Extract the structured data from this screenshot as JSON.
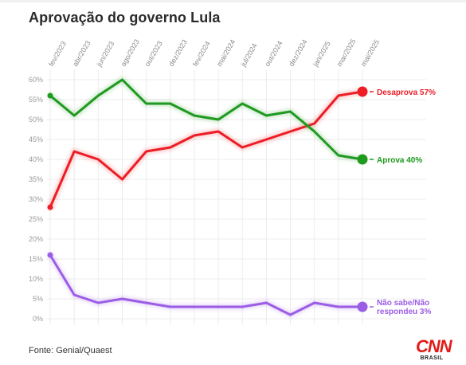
{
  "title": "Aprovação do governo Lula",
  "source": "Fonte: Genial/Quaest",
  "logo": {
    "brand": "CNN",
    "sub": "BRASIL"
  },
  "colors": {
    "approve": "#1f9a1f",
    "disapprove": "#ee1c25",
    "dontknow": "#9b5de5",
    "grid": "#ececec",
    "axis": "#dddddd"
  },
  "chart_data": {
    "type": "line",
    "x_ticks": [
      "fev/2023",
      "abr/2023",
      "jun/2023",
      "ago/2023",
      "out/2023",
      "dez/2023",
      "fev/2024",
      "mai/2024",
      "jul/2024",
      "out/2024",
      "dez/2024",
      "jan/2025",
      "mar/2025",
      "mai/2025"
    ],
    "y_ticks": [
      "0%",
      "5%",
      "10%",
      "15%",
      "20%",
      "25%",
      "30%",
      "35%",
      "40%",
      "45%",
      "50%",
      "55%",
      "60%"
    ],
    "ylim": [
      0,
      60
    ],
    "y_unit": "%",
    "grid": true,
    "series": [
      {
        "key": "disapprove",
        "name": "Desaprova",
        "end_label": "Desaprova 57%",
        "color": "#ee1c25",
        "values": [
          28,
          42,
          40,
          35,
          42,
          43,
          46,
          47,
          43,
          45,
          47,
          49,
          56,
          57
        ]
      },
      {
        "key": "approve",
        "name": "Aprova",
        "end_label": "Aprova 40%",
        "color": "#1f9a1f",
        "values": [
          56,
          51,
          56,
          60,
          54,
          54,
          51,
          50,
          54,
          51,
          52,
          47,
          41,
          40
        ]
      },
      {
        "key": "dontknow",
        "name": "Não sabe/Não respondeu",
        "end_label": [
          "Não sabe/Não",
          "respondeu 3%"
        ],
        "color": "#9b5de5",
        "values": [
          16,
          6,
          4,
          5,
          4,
          3,
          3,
          3,
          3,
          4,
          1,
          4,
          3,
          3
        ]
      }
    ]
  }
}
